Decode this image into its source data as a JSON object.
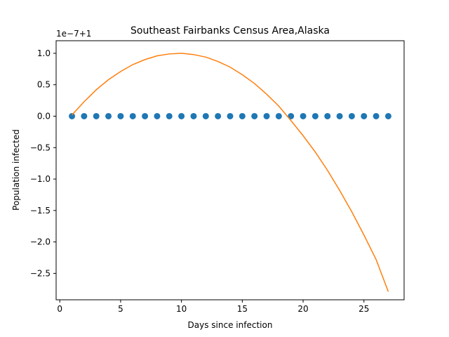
{
  "chart_data": {
    "type": "scatter",
    "title": "Southeast Fairbanks Census Area,Alaska",
    "xlabel": "Days since infection",
    "ylabel": "Population infected",
    "y_offset_text": "1e−7+1",
    "xlim": [
      -0.3,
      28.3
    ],
    "ylim": [
      -2.92,
      1.2
    ],
    "xticks": [
      0,
      5,
      10,
      15,
      20,
      25
    ],
    "xtick_labels": [
      "0",
      "5",
      "10",
      "15",
      "20",
      "25"
    ],
    "yticks": [
      1.0,
      0.5,
      0.0,
      -0.5,
      -1.0,
      -1.5,
      -2.0,
      -2.5
    ],
    "ytick_labels": [
      "1.0",
      "0.5",
      "0.0",
      "−0.5",
      "−1.0",
      "−1.5",
      "−2.0",
      "−2.5"
    ],
    "grid": false,
    "series": [
      {
        "kind": "scatter",
        "color": "#1f77b4",
        "x": [
          1,
          2,
          3,
          4,
          5,
          6,
          7,
          8,
          9,
          10,
          11,
          12,
          13,
          14,
          15,
          16,
          17,
          18,
          19,
          20,
          21,
          22,
          23,
          24,
          25,
          26,
          27
        ],
        "y": [
          0,
          0,
          0,
          0,
          0,
          0,
          0,
          0,
          0,
          0,
          0,
          0,
          0,
          0,
          0,
          0,
          0,
          0,
          0,
          0,
          0,
          0,
          0,
          0,
          0,
          0,
          0
        ]
      },
      {
        "kind": "line",
        "color": "#ff7f0e",
        "x": [
          1,
          2,
          3,
          4,
          5,
          6,
          7,
          8,
          9,
          10,
          11,
          12,
          13,
          14,
          15,
          16,
          17,
          18,
          19,
          20,
          21,
          22,
          23,
          24,
          25,
          26,
          27
        ],
        "y": [
          0.02,
          0.23,
          0.42,
          0.58,
          0.71,
          0.82,
          0.9,
          0.96,
          0.99,
          1.0,
          0.98,
          0.94,
          0.87,
          0.78,
          0.66,
          0.52,
          0.35,
          0.16,
          -0.07,
          -0.31,
          -0.57,
          -0.86,
          -1.18,
          -1.52,
          -1.89,
          -2.28,
          -2.79
        ]
      }
    ]
  }
}
